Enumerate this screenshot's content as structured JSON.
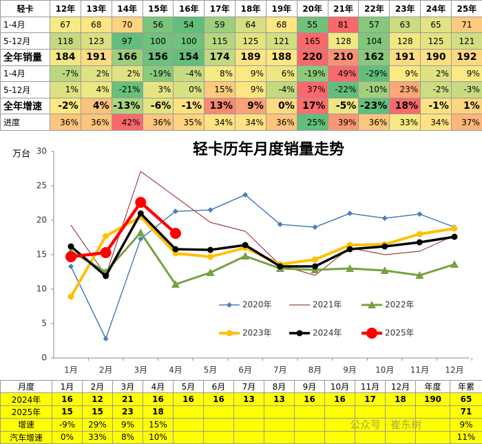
{
  "top_table": {
    "header": [
      "轻卡",
      "12年",
      "13年",
      "14年",
      "15年",
      "16年",
      "17年",
      "18年",
      "19年",
      "20年",
      "21年",
      "22年",
      "23年",
      "24年",
      "25年"
    ],
    "rows": [
      {
        "label": "1-4月",
        "values": [
          67,
          68,
          70,
          56,
          54,
          59,
          64,
          68,
          55,
          81,
          57,
          63,
          65,
          71
        ]
      },
      {
        "label": "5-12月",
        "values": [
          118,
          123,
          97,
          100,
          100,
          115,
          125,
          121,
          165,
          128,
          104,
          128,
          125,
          121
        ]
      },
      {
        "label": "全年销量",
        "values": [
          184,
          191,
          166,
          156,
          154,
          174,
          189,
          188,
          220,
          210,
          162,
          191,
          190,
          192
        ]
      },
      {
        "label": "1-4月",
        "values": [
          "-7%",
          "2%",
          "2%",
          "-19%",
          "-4%",
          "8%",
          "9%",
          "6%",
          "-19%",
          "49%",
          "-29%",
          "9%",
          "2%",
          "9%"
        ]
      },
      {
        "label": "5-12月",
        "values": [
          "1%",
          "4%",
          "-21%",
          "3%",
          "0%",
          "15%",
          "9%",
          "-4%",
          "37%",
          "-22%",
          "-10%",
          "23%",
          "-2%",
          "-3%"
        ]
      },
      {
        "label": "全年增速",
        "values": [
          "-2%",
          "4%",
          "-13%",
          "-6%",
          "-1%",
          "13%",
          "9%",
          "0%",
          "17%",
          "-5%",
          "-23%",
          "18%",
          "-1%",
          "1%"
        ]
      },
      {
        "label": "进度",
        "values": [
          "36%",
          "36%",
          "42%",
          "36%",
          "35%",
          "34%",
          "34%",
          "36%",
          "25%",
          "39%",
          "36%",
          "33%",
          "34%",
          "37%"
        ]
      }
    ]
  },
  "chart_data": {
    "type": "line",
    "title": "轻卡历年月度销量走势",
    "y_label": "万台",
    "categories": [
      "1月",
      "2月",
      "3月",
      "4月",
      "5月",
      "6月",
      "7月",
      "8月",
      "9月",
      "10月",
      "11月",
      "12月"
    ],
    "ylim": [
      0,
      30
    ],
    "yticks": [
      0,
      5,
      10,
      15,
      20,
      25,
      30
    ],
    "series": [
      {
        "name": "2020年",
        "color": "#4a7ebb",
        "line_width": 1.5,
        "marker": "diamond",
        "values": [
          13.3,
          2.8,
          17.3,
          21.3,
          21.5,
          23.7,
          19.4,
          19.0,
          21.0,
          20.3,
          20.9,
          19.0
        ]
      },
      {
        "name": "2021年",
        "color": "#a0453f",
        "line_width": 1.2,
        "marker": "none",
        "values": [
          19.3,
          12.0,
          27.1,
          23.4,
          19.7,
          18.4,
          13.5,
          12.0,
          16.0,
          15.0,
          15.5,
          17.8
        ]
      },
      {
        "name": "2022年",
        "color": "#77a040",
        "line_width": 3,
        "marker": "triangle",
        "values": [
          15.5,
          12.5,
          18.2,
          10.7,
          12.4,
          14.8,
          13.0,
          12.8,
          13.0,
          12.7,
          12.0,
          13.6
        ]
      },
      {
        "name": "2023年",
        "color": "#ffc000",
        "line_width": 4,
        "marker": "circle",
        "values": [
          8.9,
          17.7,
          20.5,
          15.2,
          14.7,
          16.0,
          13.6,
          14.3,
          16.4,
          16.5,
          18.0,
          18.8
        ]
      },
      {
        "name": "2024年",
        "color": "#000000",
        "line_width": 3.5,
        "marker": "circle",
        "values": [
          16.2,
          11.9,
          21.0,
          15.8,
          15.7,
          16.4,
          13.3,
          13.3,
          15.8,
          16.2,
          16.8,
          17.6
        ]
      },
      {
        "name": "2025年",
        "color": "#ff0000",
        "line_width": 4.5,
        "marker": "bigcircle",
        "values": [
          14.7,
          15.3,
          22.6,
          18.1,
          null,
          null,
          null,
          null,
          null,
          null,
          null,
          null
        ]
      }
    ]
  },
  "bottom_table": {
    "header": [
      "月度",
      "1月",
      "2月",
      "3月",
      "4月",
      "5月",
      "6月",
      "7月",
      "8月",
      "9月",
      "10月",
      "11月",
      "12月",
      "年度",
      "年累"
    ],
    "rows": [
      {
        "label": "2024年",
        "values": [
          16,
          12,
          21,
          16,
          16,
          16,
          13,
          13,
          16,
          16,
          17,
          18,
          190,
          65
        ]
      },
      {
        "label": "2025年",
        "values": [
          15,
          15,
          23,
          18,
          null,
          null,
          null,
          null,
          null,
          null,
          null,
          null,
          null,
          71
        ]
      },
      {
        "label": "增速",
        "values": [
          "-9%",
          "29%",
          "9%",
          "15%",
          null,
          null,
          null,
          null,
          null,
          null,
          null,
          null,
          null,
          "9%"
        ]
      },
      {
        "label": "汽车增速",
        "values": [
          "0%",
          "33%",
          "8%",
          "10%",
          null,
          null,
          null,
          null,
          null,
          null,
          null,
          null,
          null,
          "11%"
        ]
      }
    ]
  },
  "watermark": "公众号 · 崔东树"
}
